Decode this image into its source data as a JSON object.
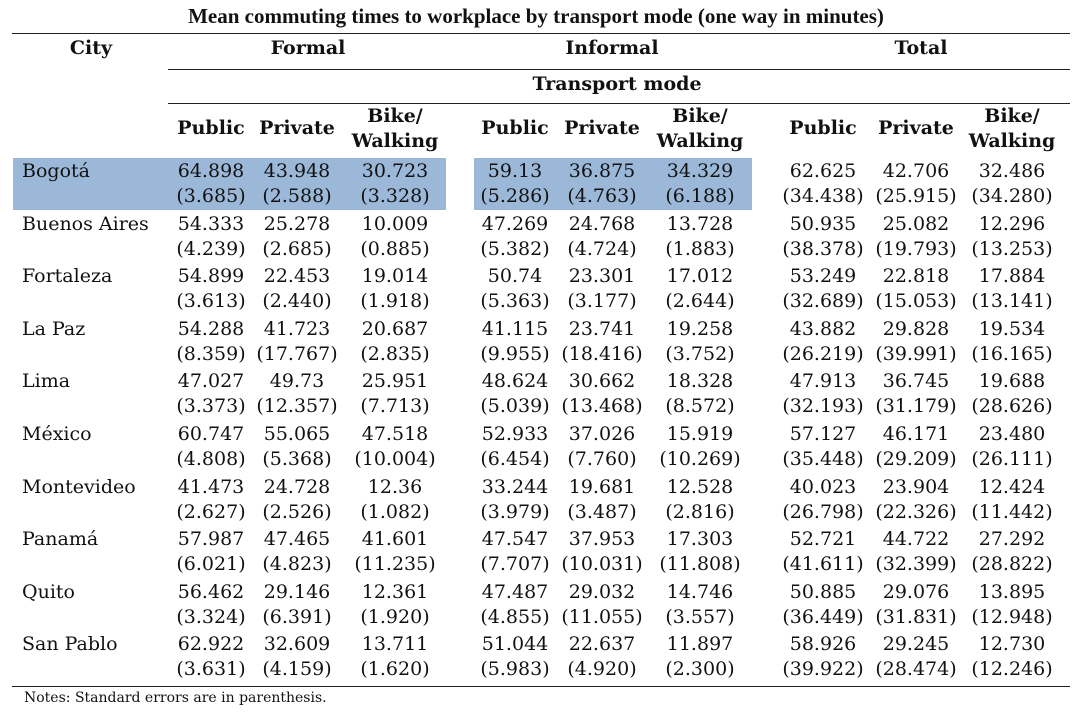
{
  "title": "Mean commuting times to workplace by transport mode (one way in minutes)",
  "header": {
    "city": "City",
    "groups": [
      "Formal",
      "Informal",
      "Total"
    ],
    "transport_mode": "Transport mode",
    "modes": [
      {
        "line1": "Public",
        "line2": ""
      },
      {
        "line1": "Private",
        "line2": ""
      },
      {
        "line1": "Bike/",
        "line2": "Walking"
      }
    ]
  },
  "rows": [
    {
      "city": "Bogotá",
      "highlight": true,
      "means": [
        "64.898",
        "43.948",
        "30.723",
        "59.13",
        "36.875",
        "34.329",
        "62.625",
        "42.706",
        "32.486"
      ],
      "se": [
        "(3.685)",
        "(2.588)",
        "(3.328)",
        "(5.286)",
        "(4.763)",
        "(6.188)",
        "(34.438)",
        "(25.915)",
        "(34.280)"
      ]
    },
    {
      "city": "Buenos Aires",
      "means": [
        "54.333",
        "25.278",
        "10.009",
        "47.269",
        "24.768",
        "13.728",
        "50.935",
        "25.082",
        "12.296"
      ],
      "se": [
        "(4.239)",
        "(2.685)",
        "(0.885)",
        "(5.382)",
        "(4.724)",
        "(1.883)",
        "(38.378)",
        "(19.793)",
        "(13.253)"
      ]
    },
    {
      "city": "Fortaleza",
      "means": [
        "54.899",
        "22.453",
        "19.014",
        "50.74",
        "23.301",
        "17.012",
        "53.249",
        "22.818",
        "17.884"
      ],
      "se": [
        "(3.613)",
        "(2.440)",
        "(1.918)",
        "(5.363)",
        "(3.177)",
        "(2.644)",
        "(32.689)",
        "(15.053)",
        "(13.141)"
      ]
    },
    {
      "city": "La Paz",
      "means": [
        "54.288",
        "41.723",
        "20.687",
        "41.115",
        "23.741",
        "19.258",
        "43.882",
        "29.828",
        "19.534"
      ],
      "se": [
        "(8.359)",
        "(17.767)",
        "(2.835)",
        "(9.955)",
        "(18.416)",
        "(3.752)",
        "(26.219)",
        "(39.991)",
        "(16.165)"
      ]
    },
    {
      "city": "Lima",
      "means": [
        "47.027",
        "49.73",
        "25.951",
        "48.624",
        "30.662",
        "18.328",
        "47.913",
        "36.745",
        "19.688"
      ],
      "se": [
        "(3.373)",
        "(12.357)",
        "(7.713)",
        "(5.039)",
        "(13.468)",
        "(8.572)",
        "(32.193)",
        "(31.179)",
        "(28.626)"
      ]
    },
    {
      "city": "México",
      "means": [
        "60.747",
        "55.065",
        "47.518",
        "52.933",
        "37.026",
        "15.919",
        "57.127",
        "46.171",
        "23.480"
      ],
      "se": [
        "(4.808)",
        "(5.368)",
        "(10.004)",
        "(6.454)",
        "(7.760)",
        "(10.269)",
        "(35.448)",
        "(29.209)",
        "(26.111)"
      ]
    },
    {
      "city": "Montevideo",
      "means": [
        "41.473",
        "24.728",
        "12.36",
        "33.244",
        "19.681",
        "12.528",
        "40.023",
        "23.904",
        "12.424"
      ],
      "se": [
        "(2.627)",
        "(2.526)",
        "(1.082)",
        "(3.979)",
        "(3.487)",
        "(2.816)",
        "(26.798)",
        "(22.326)",
        "(11.442)"
      ]
    },
    {
      "city": "Panamá",
      "means": [
        "57.987",
        "47.465",
        "41.601",
        "47.547",
        "37.953",
        "17.303",
        "52.721",
        "44.722",
        "27.292"
      ],
      "se": [
        "(6.021)",
        "(4.823)",
        "(11.235)",
        "(7.707)",
        "(10.031)",
        "(11.808)",
        "(41.611)",
        "(32.399)",
        "(28.822)"
      ]
    },
    {
      "city": "Quito",
      "means": [
        "56.462",
        "29.146",
        "12.361",
        "47.487",
        "29.032",
        "14.746",
        "50.885",
        "29.076",
        "13.895"
      ],
      "se": [
        "(3.324)",
        "(6.391)",
        "(1.920)",
        "(4.855)",
        "(11.055)",
        "(3.557)",
        "(36.449)",
        "(31.831)",
        "(12.948)"
      ]
    },
    {
      "city": "San Pablo",
      "means": [
        "62.922",
        "32.609",
        "13.711",
        "51.044",
        "22.637",
        "11.897",
        "58.926",
        "29.245",
        "12.730"
      ],
      "se": [
        "(3.631)",
        "(4.159)",
        "(1.620)",
        "(5.983)",
        "(4.920)",
        "(2.300)",
        "(39.922)",
        "(28.474)",
        "(12.246)"
      ]
    }
  ],
  "notes": "Notes: Standard errors are in parenthesis.",
  "colors": {
    "highlight": "#9bb8d8",
    "rule": "#222222"
  }
}
